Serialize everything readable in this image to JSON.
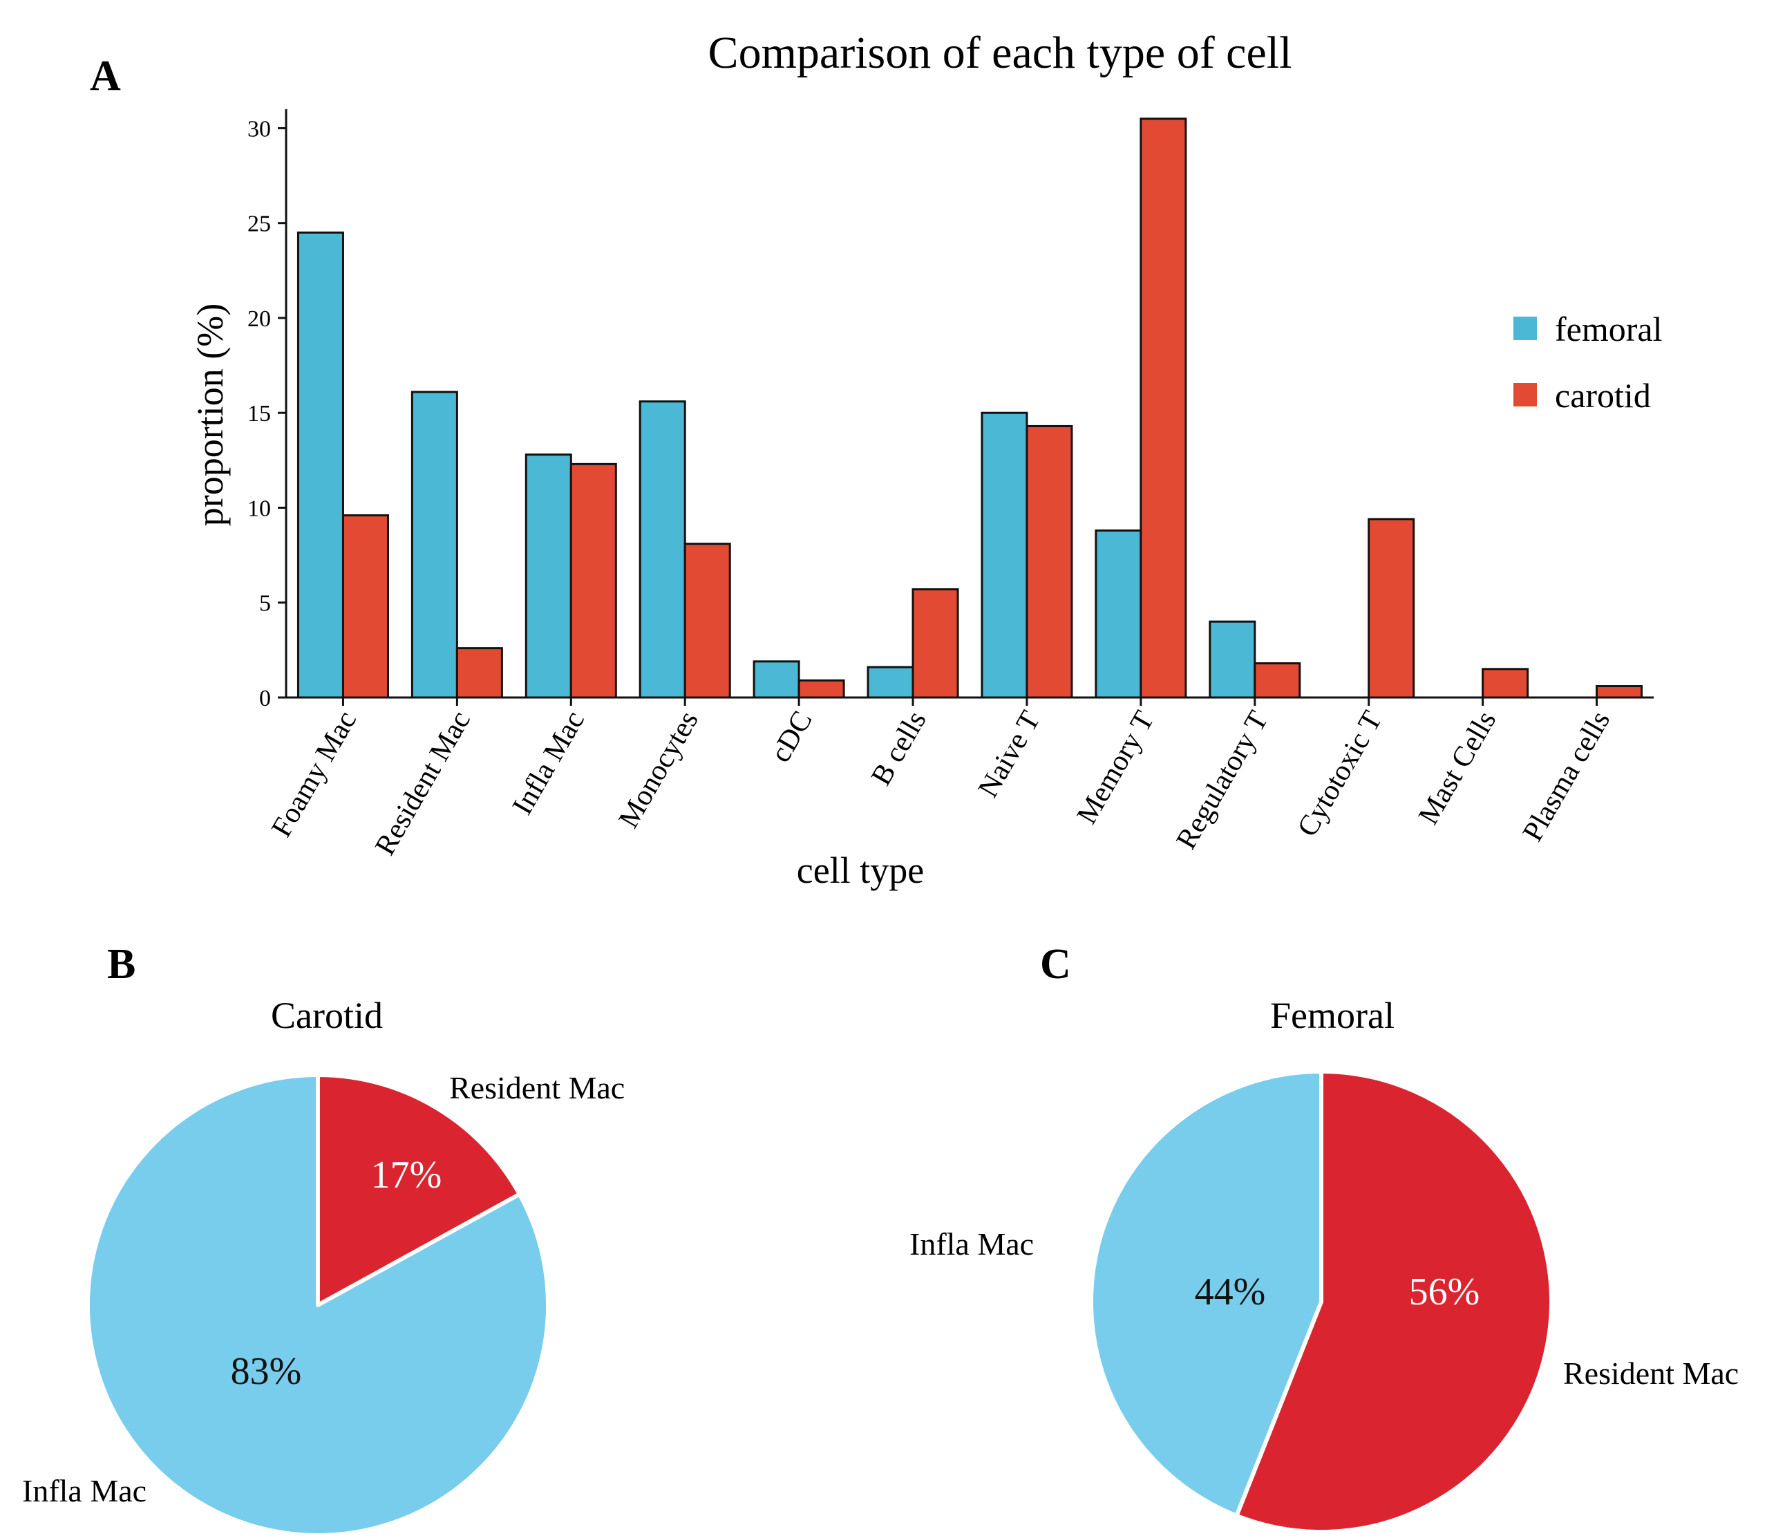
{
  "panels": {
    "a": "A",
    "b": "B",
    "c": "C"
  },
  "chart_data": [
    {
      "type": "bar",
      "title": "Comparison of each type of cell",
      "xlabel": "cell type",
      "ylabel": "proportion (%)",
      "ylim": [
        0,
        31
      ],
      "yticks": [
        0,
        5,
        10,
        15,
        20,
        25,
        30
      ],
      "grid": false,
      "legend_position": "right",
      "categories": [
        "Foamy Mac",
        "Resident Mac",
        "Infla Mac",
        "Monocytes",
        "cDC",
        "B cells",
        "Naive T",
        "Memory T",
        "Regulatory T",
        "Cytotoxic T",
        "Mast Cells",
        "Plasma cells"
      ],
      "series": [
        {
          "name": "femoral",
          "color": "#4bb8d6",
          "values": [
            24.5,
            16.1,
            12.8,
            15.6,
            1.9,
            1.6,
            15.0,
            8.8,
            4.0,
            0,
            0,
            0
          ]
        },
        {
          "name": "carotid",
          "color": "#e34a33",
          "values": [
            9.6,
            2.6,
            12.3,
            8.1,
            0.9,
            5.7,
            14.3,
            30.5,
            1.8,
            9.4,
            1.5,
            0.6
          ]
        }
      ]
    },
    {
      "type": "pie",
      "title": "Carotid",
      "slices": [
        {
          "label": "Resident Mac",
          "value": 17,
          "pct_label": "17%",
          "color": "#da2530",
          "text_color": "#ffffff"
        },
        {
          "label": "Infla Mac",
          "value": 83,
          "pct_label": "83%",
          "color": "#77cdeb",
          "text_color": "#111111"
        }
      ]
    },
    {
      "type": "pie",
      "title": "Femoral",
      "slices": [
        {
          "label": "Resident Mac",
          "value": 56,
          "pct_label": "56%",
          "color": "#da2530",
          "text_color": "#ffffff"
        },
        {
          "label": "Infla Mac",
          "value": 44,
          "pct_label": "44%",
          "color": "#77cdeb",
          "text_color": "#111111"
        }
      ]
    }
  ]
}
